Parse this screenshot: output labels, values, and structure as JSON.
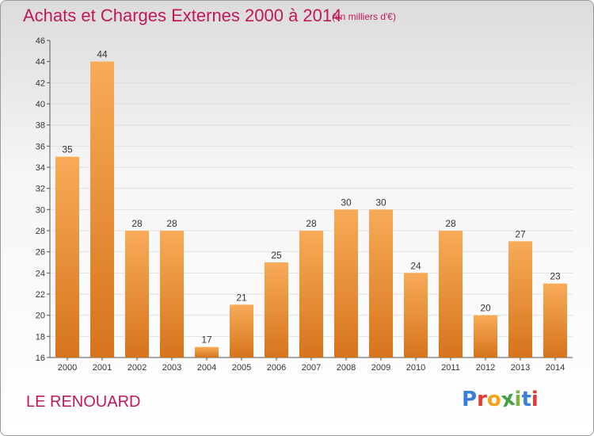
{
  "header": {
    "title": "Achats et Charges Externes 2000 à 2014",
    "unit": "(en milliers d'€)"
  },
  "footer": {
    "place": "LE RENOUARD",
    "logo_letters": [
      "P",
      "r",
      "o",
      "x",
      "i",
      "t",
      "i"
    ],
    "logo_colors": [
      "#3a7fd5",
      "#e53935",
      "#f4a21a",
      "#43a047",
      "#7cb342",
      "#3a7fd5",
      "#e53935"
    ]
  },
  "colors": {
    "title": "#c2185b",
    "bar_light": "#f8ab58",
    "bar_dark": "#d6741c",
    "grid": "#e0e0e0"
  },
  "chart_data": {
    "type": "bar",
    "title": "Achats et Charges Externes 2000 à 2014",
    "subtitle": "(en milliers d'€)",
    "xlabel": "",
    "ylabel": "",
    "categories": [
      "2000",
      "2001",
      "2002",
      "2003",
      "2004",
      "2005",
      "2006",
      "2007",
      "2008",
      "2009",
      "2010",
      "2011",
      "2012",
      "2013",
      "2014"
    ],
    "values": [
      35,
      44,
      28,
      28,
      17,
      21,
      25,
      28,
      30,
      30,
      24,
      28,
      20,
      27,
      23
    ],
    "ylim": [
      16,
      46
    ],
    "yticks": [
      16,
      18,
      20,
      22,
      24,
      26,
      28,
      30,
      32,
      34,
      36,
      38,
      40,
      42,
      44,
      46
    ],
    "grid": true,
    "legend": "none"
  }
}
